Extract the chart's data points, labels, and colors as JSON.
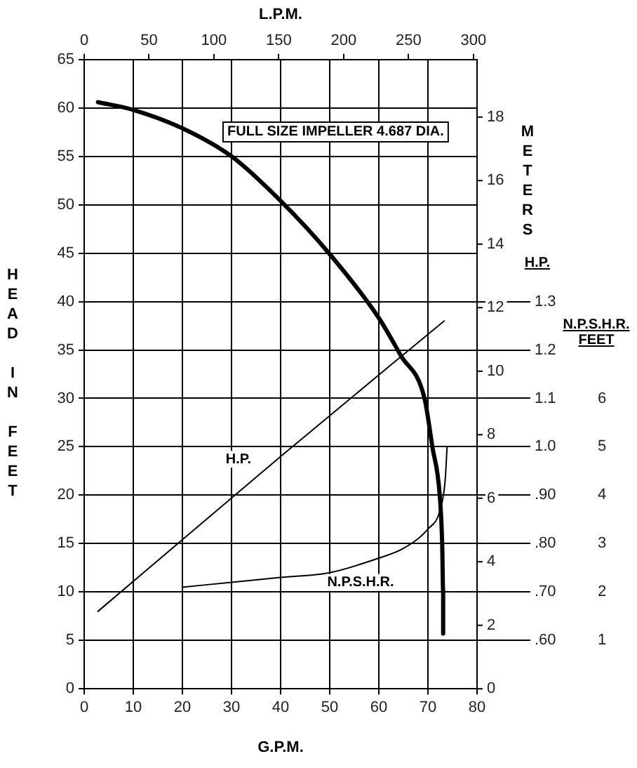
{
  "chart_data": {
    "type": "line",
    "xlabel": "G.P.M.",
    "x2label": "L.P.M.",
    "ylabel": "HEAD IN FEET",
    "y2label": "H.P.",
    "y3label": "N.P.S.H.R. FEET",
    "xlim": [
      0,
      80
    ],
    "xticks": [
      0,
      10,
      20,
      30,
      40,
      50,
      60,
      70,
      80
    ],
    "x2lim": [
      0,
      302.8
    ],
    "x2ticks": [
      0,
      50,
      100,
      150,
      200,
      250,
      300
    ],
    "ylim": [
      0,
      65
    ],
    "yticks": [
      0,
      5,
      10,
      15,
      20,
      25,
      30,
      35,
      40,
      45,
      50,
      55,
      60,
      65
    ],
    "y2lim": [
      0.5,
      1.8
    ],
    "y2ticks": [
      {
        "value": 0.6,
        "label": ".60"
      },
      {
        "value": 0.7,
        "label": ".70"
      },
      {
        "value": 0.8,
        "label": ".80"
      },
      {
        "value": 0.9,
        "label": ".90"
      },
      {
        "value": 1.0,
        "label": "1.0"
      },
      {
        "value": 1.1,
        "label": "1.1"
      },
      {
        "value": 1.2,
        "label": "1.2"
      },
      {
        "value": 1.3,
        "label": "1.3"
      }
    ],
    "y3lim": [
      0,
      13
    ],
    "y3ticks": [
      1,
      2,
      3,
      4,
      5,
      6
    ],
    "series": [
      {
        "color": "#000000",
        "x": [
          2.8,
          10,
          20,
          30,
          40,
          50,
          60,
          64.5,
          69.3,
          70.9,
          72.4,
          72.9,
          73.1,
          73.1
        ],
        "values": [
          60.6,
          59.8,
          57.9,
          55,
          50.4,
          44.9,
          38.3,
          34.4,
          30,
          25,
          20,
          15,
          10,
          5.7
        ]
      },
      {
        "name": "H.P.",
        "axis": "y2",
        "color": "#000000",
        "x": [
          2.8,
          40,
          73.3
        ],
        "values": [
          0.66,
          0.98,
          1.26
        ]
      },
      {
        "name": "N.P.S.H.R.",
        "axis": "y3",
        "color": "#000000",
        "x": [
          20,
          30,
          40,
          50,
          60,
          65,
          70,
          72.5,
          73.5,
          73.9
        ],
        "values": [
          2.1,
          2.2,
          2.3,
          2.4,
          2.7,
          2.9,
          3.3,
          3.7,
          4.3,
          5.0
        ]
      }
    ],
    "annotations": [
      "FULL SIZE IMPELLER 4.687 DIA.",
      "METERS",
      "0",
      "2",
      "4",
      "6",
      "8",
      "10",
      "12",
      "14",
      "16",
      "18"
    ],
    "legend": false,
    "grid": true,
    "marker": "none",
    "line_style": "solid"
  }
}
